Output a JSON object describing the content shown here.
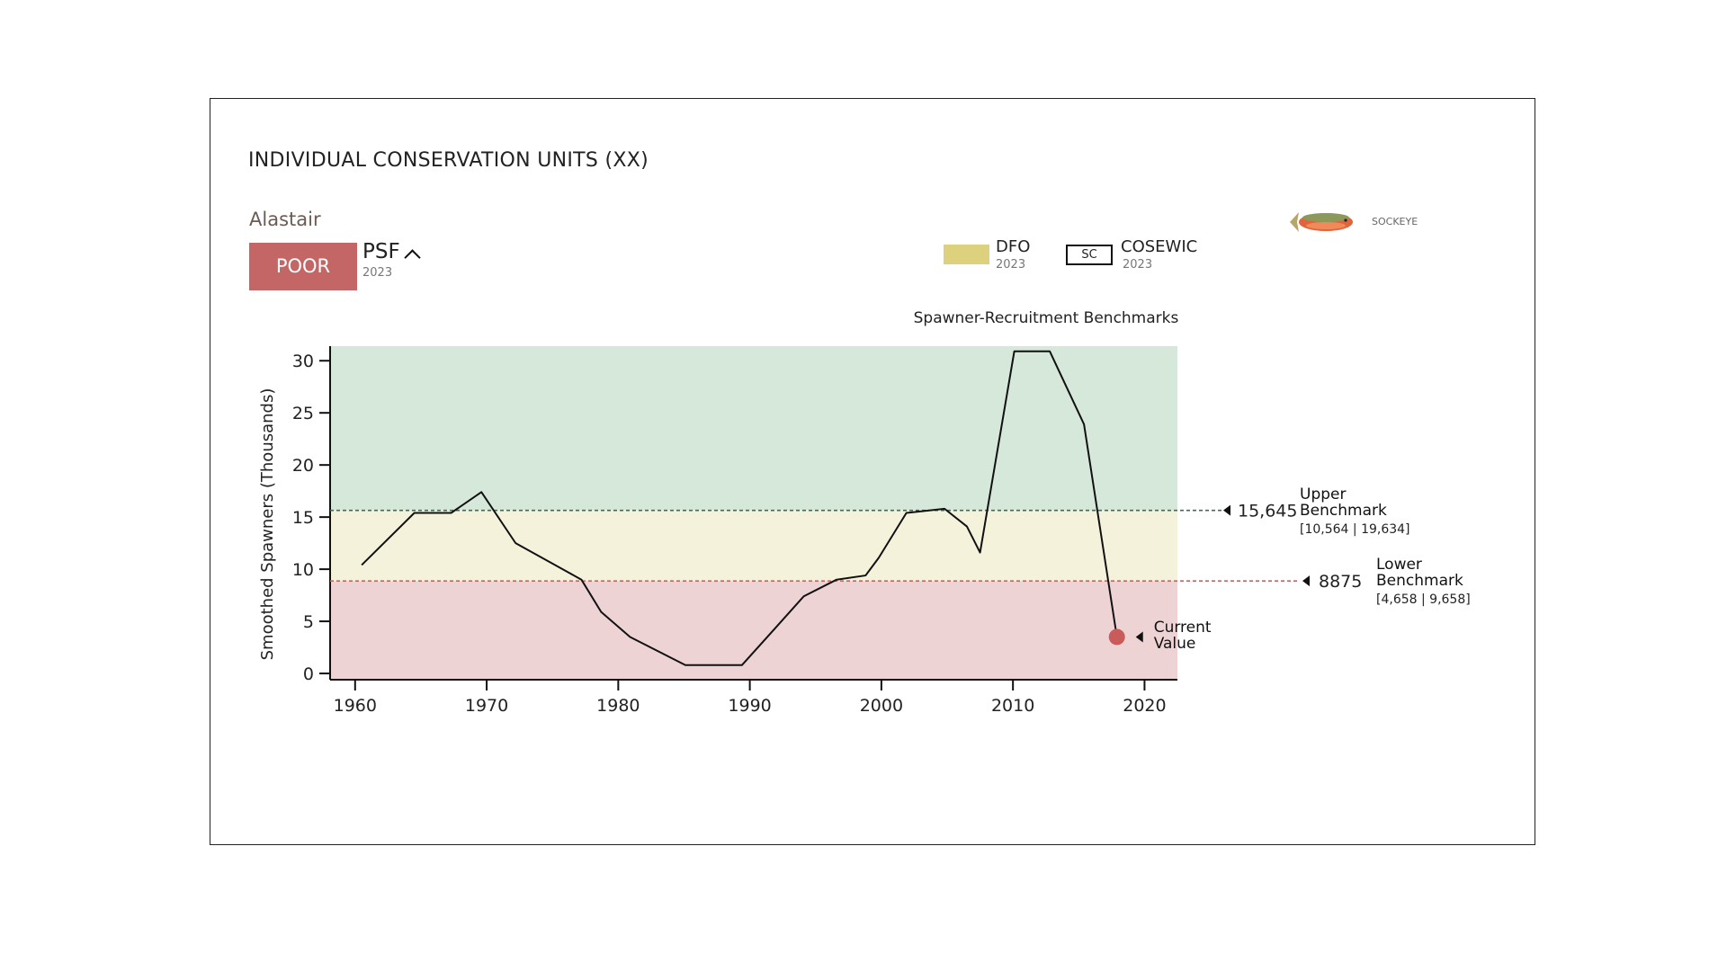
{
  "header": {
    "title": "INDIVIDUAL CONSERVATION UNITS (XX)",
    "unit": "Alastair",
    "status": "POOR",
    "status_color": "#c46666",
    "source": "PSF",
    "source_year": "2023",
    "species": "SOCKEYE"
  },
  "legend": [
    {
      "label": "DFO",
      "year": "2023",
      "color": "#ddd17e"
    },
    {
      "badge": "SC",
      "label": "COSEWIC",
      "year": "2023"
    }
  ],
  "chart_data": {
    "type": "line",
    "title": "Spawner-Recruitment Benchmarks",
    "y_label": "Smoothed Spawners (Thousands)",
    "x": [
      1960.5,
      1964.5,
      1967.3,
      1969.6,
      1972.2,
      1977.2,
      1978.7,
      1980.9,
      1985.1,
      1989.4,
      1991.9,
      1994.1,
      1996.6,
      1998.8,
      1999.8,
      2001.9,
      2004.8,
      2006.5,
      2007.5,
      2010.1,
      2012.8,
      2015.4,
      2017.9
    ],
    "series": [
      {
        "color": "#111111",
        "values": [
          10.4,
          15.4,
          15.4,
          17.4,
          12.5,
          9.0,
          5.9,
          3.5,
          0.8,
          0.8,
          4.3,
          7.4,
          9.0,
          9.4,
          11.1,
          15.4,
          15.8,
          14.1,
          11.6,
          30.9,
          30.9,
          23.9,
          3.5
        ]
      }
    ],
    "xlim": [
      1958.1,
      2022.5
    ],
    "xticks": [
      1960,
      1970,
      1980,
      1990,
      2000,
      2010,
      2020
    ],
    "ylim": [
      -0.6,
      31.4
    ],
    "yticks": [
      0,
      5,
      10,
      15,
      20,
      25,
      30
    ],
    "zone_colors": [
      "#edd3d4",
      "#f5f2dc",
      "#d5e8da"
    ],
    "benchmarks": [
      {
        "name": "Lower Benchmark",
        "value": 8.875,
        "label": "8875",
        "range": "[4,658 | 9,658]",
        "color": "#c46666"
      },
      {
        "name": "Upper Benchmark",
        "value": 15.645,
        "label": "15,645",
        "range": "[10,564 | 19,634]",
        "color": "#3f6b5c"
      }
    ],
    "current": {
      "name": "Current Value",
      "x": 2017.9,
      "value": 3.5,
      "color": "#c95b5b"
    }
  }
}
